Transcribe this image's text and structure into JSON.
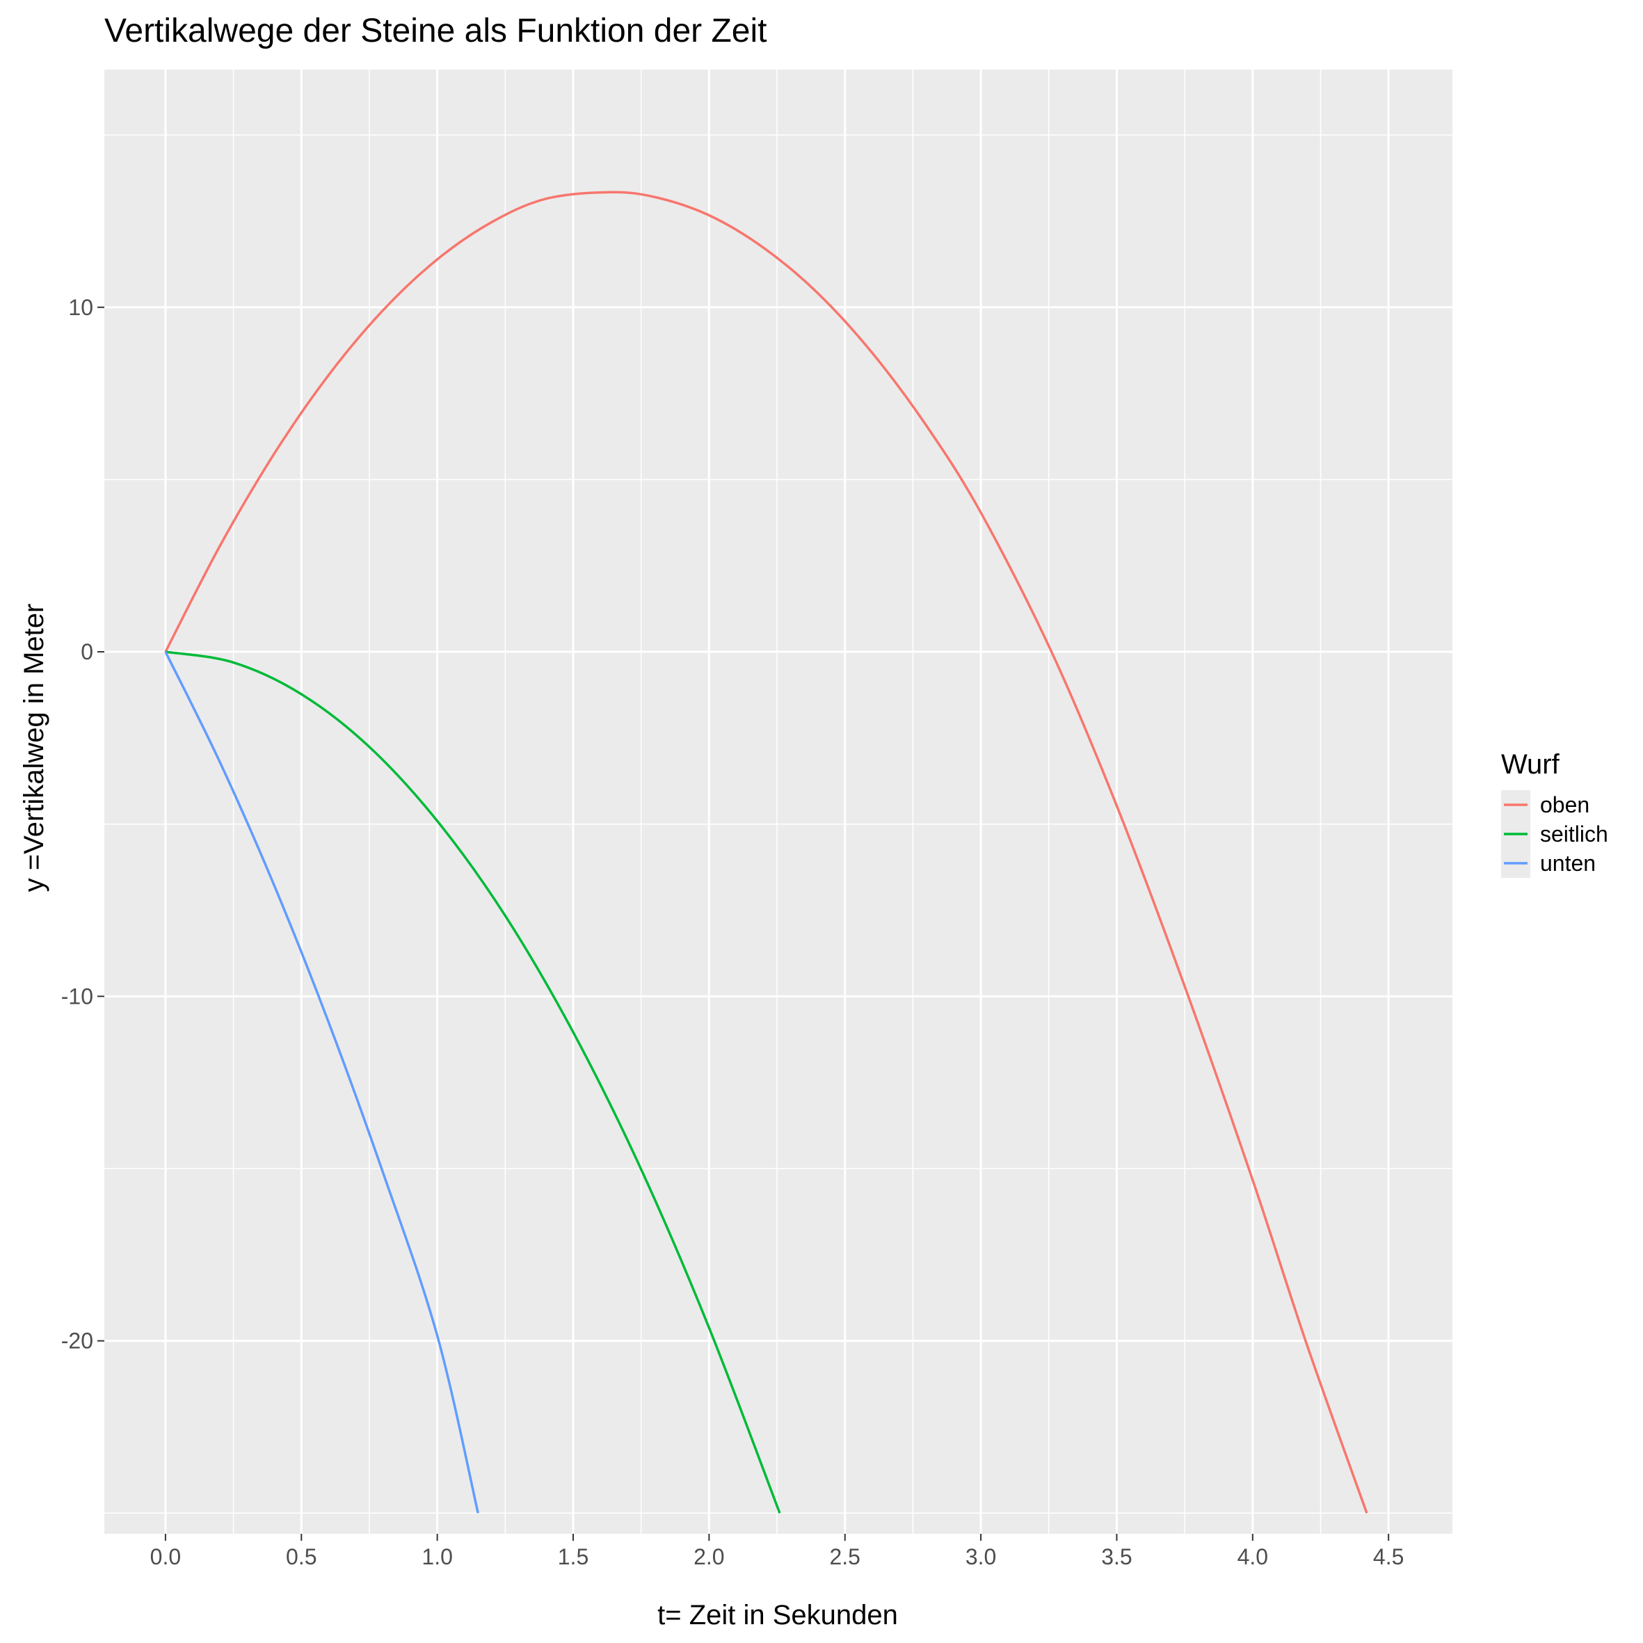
{
  "chart_data": {
    "type": "line",
    "title": "Vertikalwege der Steine als Funktion der Zeit",
    "xlabel": "t= Zeit in Sekunden",
    "ylabel": "y =Vertikalweg in Meter",
    "xlim": [
      -0.225,
      4.735
    ],
    "ylim": [
      -25.6,
      16.9
    ],
    "x_ticks": [
      0.0,
      0.5,
      1.0,
      1.5,
      2.0,
      2.5,
      3.0,
      3.5,
      4.0,
      4.5
    ],
    "x_tick_labels": [
      "0.0",
      "0.5",
      "1.0",
      "1.5",
      "2.0",
      "2.5",
      "3.0",
      "3.5",
      "4.0",
      "4.5"
    ],
    "y_ticks": [
      -20,
      -10,
      0,
      10
    ],
    "y_tick_labels": [
      "-20",
      "-10",
      "0",
      "10"
    ],
    "grid": true,
    "legend": {
      "title": "Wurf",
      "position": "right"
    },
    "series": [
      {
        "name": "oben",
        "color": "#F8766D",
        "x": [
          0.0,
          0.2,
          0.4,
          0.6,
          0.8,
          1.0,
          1.2,
          1.4,
          1.63,
          1.8,
          2.0,
          2.2,
          2.4,
          2.6,
          2.8,
          3.0,
          3.26,
          3.5,
          3.75,
          4.0,
          4.2,
          4.42
        ],
        "y": [
          0.0,
          3.07,
          5.75,
          8.03,
          9.91,
          11.39,
          12.47,
          13.15,
          13.34,
          13.2,
          12.67,
          11.73,
          10.41,
          8.68,
          6.56,
          4.04,
          0.0,
          -4.47,
          -9.71,
          -15.33,
          -20.12,
          -25.0
        ]
      },
      {
        "name": "seitlich",
        "color": "#00BA38",
        "x": [
          0.0,
          0.25,
          0.5,
          0.75,
          1.0,
          1.25,
          1.5,
          1.75,
          2.0,
          2.26
        ],
        "y": [
          0.0,
          -0.31,
          -1.23,
          -2.76,
          -4.91,
          -7.66,
          -11.04,
          -15.02,
          -19.62,
          -25.0
        ]
      },
      {
        "name": "unten",
        "color": "#619CFF",
        "x": [
          0.0,
          0.2,
          0.4,
          0.6,
          0.8,
          1.0,
          1.15
        ],
        "y": [
          0.0,
          -3.2,
          -6.78,
          -10.75,
          -15.11,
          -19.85,
          -25.0
        ]
      }
    ]
  }
}
